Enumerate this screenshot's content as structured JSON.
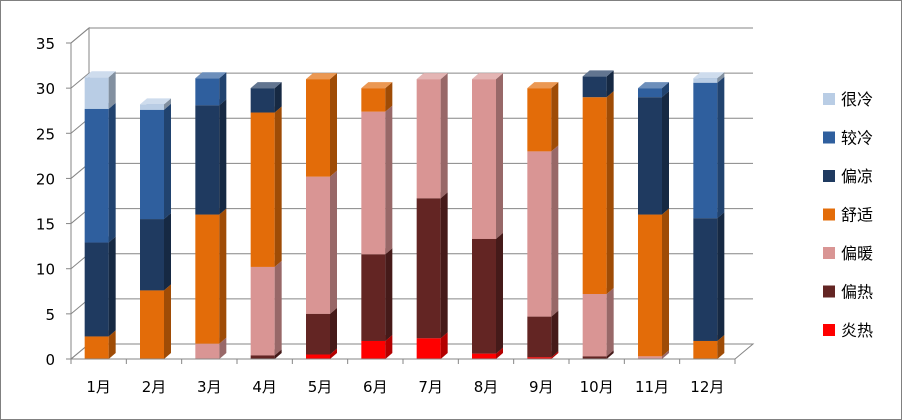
{
  "chart_data": {
    "type": "bar",
    "stacked": true,
    "three_d": true,
    "title": "",
    "xlabel": "",
    "ylabel": "",
    "ylim": [
      0,
      35
    ],
    "yticks": [
      0,
      5,
      10,
      15,
      20,
      25,
      30,
      35
    ],
    "grid": true,
    "legend_position": "right",
    "categories": [
      "1月",
      "2月",
      "3月",
      "4月",
      "5月",
      "6月",
      "7月",
      "8月",
      "9月",
      "10月",
      "11月",
      "12月"
    ],
    "series": [
      {
        "name": "炎热",
        "color": "#FF0000",
        "values": [
          0,
          0,
          0,
          0,
          0.5,
          2,
          2.3,
          0.6,
          0.2,
          0,
          0,
          0
        ]
      },
      {
        "name": "偏热",
        "color": "#632523",
        "values": [
          0,
          0,
          0,
          0.4,
          4.5,
          9.6,
          15.5,
          12.7,
          4.5,
          0.3,
          0,
          0
        ]
      },
      {
        "name": "偏暖",
        "color": "#D99594",
        "values": [
          0,
          0,
          1.7,
          9.8,
          15.2,
          15.8,
          13.2,
          17.7,
          18.3,
          6.9,
          0.3,
          0
        ]
      },
      {
        "name": "舒适",
        "color": "#E36C09",
        "values": [
          2.5,
          7.6,
          14.3,
          17.1,
          10.8,
          2.6,
          0,
          0,
          7,
          21.8,
          15.7,
          2
        ]
      },
      {
        "name": "偏凉",
        "color": "#1F3A60",
        "values": [
          10.4,
          7.9,
          12.1,
          2.7,
          0,
          0,
          0,
          0,
          0,
          2.3,
          13,
          13.6
        ]
      },
      {
        "name": "较冷",
        "color": "#2F5F9E",
        "values": [
          14.8,
          12.1,
          3,
          0,
          0,
          0,
          0,
          0,
          0,
          0,
          1,
          15
        ]
      },
      {
        "name": "很冷",
        "color": "#B9CDE5",
        "values": [
          3.5,
          0.6,
          0,
          0,
          0,
          0,
          0,
          0,
          0,
          0,
          0,
          0.5
        ]
      }
    ]
  }
}
